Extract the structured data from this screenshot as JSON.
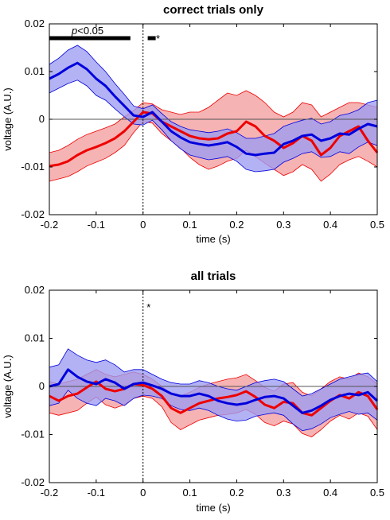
{
  "colors": {
    "red_line": "#ee0000",
    "red_fill": "#f4a6a6",
    "blue_line": "#0000dd",
    "blue_fill": "#9c9cf2"
  },
  "chart_data": [
    {
      "type": "line",
      "title": "correct trials only",
      "xlabel": "time (s)",
      "ylabel": "voltage (A.U.)",
      "xlim": [
        -0.2,
        0.5
      ],
      "ylim": [
        -0.02,
        0.02
      ],
      "xticks": [
        "-0.2",
        "-0.1",
        "0",
        "0.1",
        "0.2",
        "0.3",
        "0.4",
        "0.5"
      ],
      "yticks": [
        "-0.02",
        "-0.01",
        "0",
        "0.01",
        "0.02"
      ],
      "annotation": {
        "p_italic": "p",
        "p_rest": "<0.05"
      },
      "significance": {
        "y": 0.017,
        "ranges": [
          [
            -0.2,
            -0.027
          ],
          [
            0.01,
            0.027
          ]
        ],
        "star_x": 0.032
      },
      "series": [
        {
          "color": "red",
          "x": [
            -0.2,
            -0.18,
            -0.16,
            -0.14,
            -0.12,
            -0.1,
            -0.08,
            -0.06,
            -0.04,
            -0.02,
            0,
            0.02,
            0.04,
            0.06,
            0.08,
            0.1,
            0.12,
            0.14,
            0.16,
            0.18,
            0.2,
            0.22,
            0.24,
            0.26,
            0.28,
            0.3,
            0.32,
            0.34,
            0.36,
            0.38,
            0.4,
            0.42,
            0.44,
            0.46,
            0.48,
            0.5
          ],
          "mean": [
            -0.0098,
            -0.0095,
            -0.0088,
            -0.0075,
            -0.0065,
            -0.0058,
            -0.005,
            -0.004,
            -0.0025,
            -0.0005,
            0.0015,
            0.0012,
            -0.0005,
            -0.0015,
            -0.0025,
            -0.0035,
            -0.004,
            -0.0042,
            -0.004,
            -0.003,
            -0.0025,
            -0.0005,
            -0.0015,
            -0.0035,
            -0.0045,
            -0.006,
            -0.005,
            -0.0035,
            -0.0045,
            -0.0075,
            -0.006,
            -0.0035,
            -0.0025,
            -0.0015,
            -0.0045,
            -0.007
          ],
          "upper": [
            -0.007,
            -0.0065,
            -0.0055,
            -0.0042,
            -0.0032,
            -0.0025,
            -0.0018,
            -0.001,
            0.0005,
            0.0018,
            0.0035,
            0.0032,
            0.002,
            0.0015,
            0.001,
            0.0015,
            0.0015,
            0.0025,
            0.004,
            0.0055,
            0.005,
            0.006,
            0.005,
            0.0035,
            0.0015,
            0.0005,
            0.0015,
            0.0035,
            0.003,
            0.0005,
            0.0015,
            0.0025,
            0.0035,
            0.0035,
            0.003,
            0.0025
          ],
          "lower": [
            -0.013,
            -0.0125,
            -0.012,
            -0.011,
            -0.0098,
            -0.009,
            -0.0082,
            -0.007,
            -0.0055,
            -0.0028,
            -0.0005,
            -0.0008,
            -0.003,
            -0.0045,
            -0.006,
            -0.008,
            -0.0095,
            -0.0105,
            -0.0098,
            -0.0088,
            -0.0082,
            -0.0065,
            -0.0078,
            -0.0092,
            -0.0105,
            -0.0118,
            -0.011,
            -0.0095,
            -0.0105,
            -0.013,
            -0.0115,
            -0.0095,
            -0.0085,
            -0.0078,
            -0.0088,
            -0.01
          ]
        },
        {
          "color": "blue",
          "x": [
            -0.2,
            -0.18,
            -0.16,
            -0.14,
            -0.12,
            -0.1,
            -0.08,
            -0.06,
            -0.04,
            -0.02,
            0,
            0.02,
            0.04,
            0.06,
            0.08,
            0.1,
            0.12,
            0.14,
            0.16,
            0.18,
            0.2,
            0.22,
            0.24,
            0.26,
            0.28,
            0.3,
            0.32,
            0.34,
            0.36,
            0.38,
            0.4,
            0.42,
            0.44,
            0.46,
            0.48,
            0.5
          ],
          "mean": [
            0.0085,
            0.0095,
            0.0108,
            0.0118,
            0.0105,
            0.0085,
            0.007,
            0.0048,
            0.0028,
            0.0008,
            0.0005,
            0.0015,
            -0.0005,
            -0.0025,
            -0.0038,
            -0.0048,
            -0.0052,
            -0.0055,
            -0.0052,
            -0.0048,
            -0.0058,
            -0.0072,
            -0.0075,
            -0.0072,
            -0.007,
            -0.0052,
            -0.0045,
            -0.0035,
            -0.0032,
            -0.0045,
            -0.004,
            -0.003,
            -0.0032,
            -0.002,
            -0.001,
            -0.0015
          ],
          "upper": [
            0.0115,
            0.0128,
            0.0145,
            0.0155,
            0.0142,
            0.012,
            0.01,
            0.0075,
            0.0052,
            0.0028,
            0.0022,
            0.003,
            0.0012,
            -0.0005,
            -0.0015,
            -0.0022,
            -0.0025,
            -0.0028,
            -0.0025,
            -0.002,
            -0.0028,
            -0.004,
            -0.004,
            -0.0035,
            -0.003,
            -0.0015,
            -0.0008,
            -0.0002,
            0.0002,
            -0.001,
            -0.0005,
            0.0008,
            0.0012,
            0.002,
            0.0035,
            0.004
          ],
          "lower": [
            0.0055,
            0.0065,
            0.0075,
            0.0082,
            0.007,
            0.005,
            0.004,
            0.0022,
            0.0005,
            -0.001,
            -0.0012,
            -0.0002,
            -0.0022,
            -0.0045,
            -0.0062,
            -0.0075,
            -0.008,
            -0.0085,
            -0.0082,
            -0.0078,
            -0.0088,
            -0.0105,
            -0.011,
            -0.0108,
            -0.0105,
            -0.009,
            -0.0082,
            -0.0072,
            -0.0068,
            -0.008,
            -0.0078,
            -0.0068,
            -0.0072,
            -0.0058,
            -0.0048,
            -0.0055
          ]
        }
      ]
    },
    {
      "type": "line",
      "title": "all trials",
      "xlabel": "time (s)",
      "ylabel": "voltage (A.U.)",
      "xlim": [
        -0.2,
        0.5
      ],
      "ylim": [
        -0.02,
        0.02
      ],
      "xticks": [
        "-0.2",
        "-0.1",
        "0",
        "0.1",
        "0.2",
        "0.3",
        "0.4",
        "0.5"
      ],
      "yticks": [
        "-0.02",
        "-0.01",
        "0",
        "0.01",
        "0.02"
      ],
      "significance": {
        "y": 0.0165,
        "ranges": [],
        "star_x": 0.012
      },
      "series": [
        {
          "color": "red",
          "x": [
            -0.2,
            -0.18,
            -0.16,
            -0.14,
            -0.12,
            -0.1,
            -0.08,
            -0.06,
            -0.04,
            -0.02,
            0,
            0.02,
            0.04,
            0.06,
            0.08,
            0.1,
            0.12,
            0.14,
            0.16,
            0.18,
            0.2,
            0.22,
            0.24,
            0.26,
            0.28,
            0.3,
            0.32,
            0.34,
            0.36,
            0.38,
            0.4,
            0.42,
            0.44,
            0.46,
            0.48,
            0.5
          ],
          "mean": [
            -0.002,
            -0.003,
            -0.002,
            -0.0015,
            -0.0002,
            0.001,
            -0.0005,
            -0.001,
            -0.0005,
            0.0005,
            0.0003,
            -0.0005,
            -0.002,
            -0.0045,
            -0.0055,
            -0.0045,
            -0.0035,
            -0.003,
            -0.0025,
            -0.0022,
            -0.0018,
            -0.001,
            -0.0022,
            -0.0038,
            -0.0045,
            -0.0032,
            -0.0035,
            -0.0055,
            -0.006,
            -0.0045,
            -0.003,
            -0.0018,
            -0.0025,
            -0.0012,
            -0.002,
            -0.0048
          ],
          "upper": [
            0.001,
            0.0005,
            0.001,
            0.0015,
            0.0025,
            0.0035,
            0.0025,
            0.002,
            0.0025,
            0.003,
            0.0025,
            0.0015,
            0.0,
            -0.0015,
            -0.002,
            -0.0012,
            -0.0002,
            0.0005,
            0.001,
            0.0015,
            0.0018,
            0.0025,
            0.0012,
            -0.0002,
            -0.001,
            0.0005,
            0.0008,
            -0.0012,
            -0.002,
            -0.0005,
            0.001,
            0.002,
            0.0015,
            0.0028,
            0.002,
            0.0005
          ],
          "lower": [
            -0.0055,
            -0.006,
            -0.0055,
            -0.005,
            -0.0035,
            -0.0022,
            -0.0038,
            -0.0045,
            -0.0038,
            -0.0025,
            -0.002,
            -0.0025,
            -0.0042,
            -0.0075,
            -0.009,
            -0.008,
            -0.007,
            -0.0065,
            -0.006,
            -0.0058,
            -0.0055,
            -0.0048,
            -0.0058,
            -0.0075,
            -0.0082,
            -0.0072,
            -0.0078,
            -0.0098,
            -0.0105,
            -0.009,
            -0.0072,
            -0.006,
            -0.0068,
            -0.0055,
            -0.0062,
            -0.009
          ]
        },
        {
          "color": "blue",
          "x": [
            -0.2,
            -0.18,
            -0.16,
            -0.14,
            -0.12,
            -0.1,
            -0.08,
            -0.06,
            -0.04,
            -0.02,
            0,
            0.02,
            0.04,
            0.06,
            0.08,
            0.1,
            0.12,
            0.14,
            0.16,
            0.18,
            0.2,
            0.22,
            0.24,
            0.26,
            0.28,
            0.3,
            0.32,
            0.34,
            0.36,
            0.38,
            0.4,
            0.42,
            0.44,
            0.46,
            0.48,
            0.5
          ],
          "mean": [
            0.0,
            0.0005,
            0.0035,
            0.002,
            0.001,
            0.0005,
            0.0015,
            0.0008,
            -0.0005,
            0.0005,
            0.0008,
            0.0002,
            -0.0005,
            -0.0015,
            -0.002,
            -0.002,
            -0.0015,
            -0.002,
            -0.003,
            -0.0035,
            -0.0038,
            -0.0035,
            -0.0028,
            -0.0022,
            -0.002,
            -0.0025,
            -0.004,
            -0.0055,
            -0.005,
            -0.004,
            -0.0028,
            -0.002,
            -0.0015,
            -0.0018,
            -0.0012,
            -0.003
          ],
          "upper": [
            0.004,
            0.0045,
            0.0078,
            0.0065,
            0.0055,
            0.005,
            0.0055,
            0.0045,
            0.003,
            0.0035,
            0.0035,
            0.0025,
            0.0015,
            0.0008,
            0.0005,
            0.0005,
            0.0012,
            0.0008,
            0.0,
            -0.0005,
            -0.0008,
            0.0,
            0.0008,
            0.0012,
            0.0015,
            0.001,
            -0.0005,
            -0.002,
            -0.0015,
            -0.0005,
            0.0005,
            0.0015,
            0.002,
            0.0025,
            0.0028,
            0.001
          ],
          "lower": [
            -0.004,
            -0.0035,
            -0.0008,
            -0.0025,
            -0.0035,
            -0.004,
            -0.0025,
            -0.003,
            -0.004,
            -0.0025,
            -0.0018,
            -0.002,
            -0.0025,
            -0.004,
            -0.0048,
            -0.005,
            -0.0045,
            -0.005,
            -0.006,
            -0.0068,
            -0.0072,
            -0.007,
            -0.0062,
            -0.0058,
            -0.0055,
            -0.006,
            -0.0078,
            -0.0092,
            -0.0088,
            -0.0078,
            -0.0065,
            -0.0058,
            -0.0052,
            -0.0058,
            -0.0055,
            -0.007
          ]
        }
      ]
    }
  ]
}
